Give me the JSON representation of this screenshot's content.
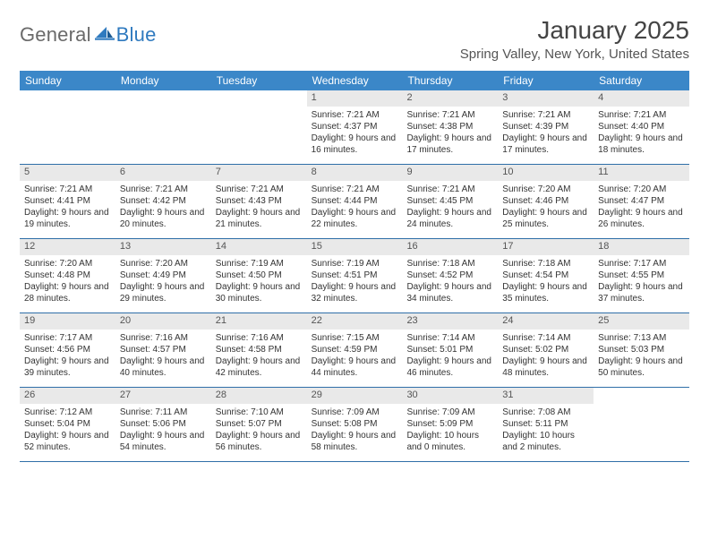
{
  "logo": {
    "text1": "General",
    "text2": "Blue"
  },
  "title": "January 2025",
  "location": "Spring Valley, New York, United States",
  "colors": {
    "header_bg": "#3b87c8",
    "daynum_bg": "#e9e9e9",
    "week_border": "#2f6fa8",
    "logo_gray": "#6a6a6a",
    "logo_blue": "#2f7abf"
  },
  "weekdays": [
    "Sunday",
    "Monday",
    "Tuesday",
    "Wednesday",
    "Thursday",
    "Friday",
    "Saturday"
  ],
  "weeks": [
    [
      {
        "empty": true
      },
      {
        "empty": true
      },
      {
        "empty": true
      },
      {
        "n": "1",
        "sr": "7:21 AM",
        "ss": "4:37 PM",
        "dl": "9 hours and 16 minutes."
      },
      {
        "n": "2",
        "sr": "7:21 AM",
        "ss": "4:38 PM",
        "dl": "9 hours and 17 minutes."
      },
      {
        "n": "3",
        "sr": "7:21 AM",
        "ss": "4:39 PM",
        "dl": "9 hours and 17 minutes."
      },
      {
        "n": "4",
        "sr": "7:21 AM",
        "ss": "4:40 PM",
        "dl": "9 hours and 18 minutes."
      }
    ],
    [
      {
        "n": "5",
        "sr": "7:21 AM",
        "ss": "4:41 PM",
        "dl": "9 hours and 19 minutes."
      },
      {
        "n": "6",
        "sr": "7:21 AM",
        "ss": "4:42 PM",
        "dl": "9 hours and 20 minutes."
      },
      {
        "n": "7",
        "sr": "7:21 AM",
        "ss": "4:43 PM",
        "dl": "9 hours and 21 minutes."
      },
      {
        "n": "8",
        "sr": "7:21 AM",
        "ss": "4:44 PM",
        "dl": "9 hours and 22 minutes."
      },
      {
        "n": "9",
        "sr": "7:21 AM",
        "ss": "4:45 PM",
        "dl": "9 hours and 24 minutes."
      },
      {
        "n": "10",
        "sr": "7:20 AM",
        "ss": "4:46 PM",
        "dl": "9 hours and 25 minutes."
      },
      {
        "n": "11",
        "sr": "7:20 AM",
        "ss": "4:47 PM",
        "dl": "9 hours and 26 minutes."
      }
    ],
    [
      {
        "n": "12",
        "sr": "7:20 AM",
        "ss": "4:48 PM",
        "dl": "9 hours and 28 minutes."
      },
      {
        "n": "13",
        "sr": "7:20 AM",
        "ss": "4:49 PM",
        "dl": "9 hours and 29 minutes."
      },
      {
        "n": "14",
        "sr": "7:19 AM",
        "ss": "4:50 PM",
        "dl": "9 hours and 30 minutes."
      },
      {
        "n": "15",
        "sr": "7:19 AM",
        "ss": "4:51 PM",
        "dl": "9 hours and 32 minutes."
      },
      {
        "n": "16",
        "sr": "7:18 AM",
        "ss": "4:52 PM",
        "dl": "9 hours and 34 minutes."
      },
      {
        "n": "17",
        "sr": "7:18 AM",
        "ss": "4:54 PM",
        "dl": "9 hours and 35 minutes."
      },
      {
        "n": "18",
        "sr": "7:17 AM",
        "ss": "4:55 PM",
        "dl": "9 hours and 37 minutes."
      }
    ],
    [
      {
        "n": "19",
        "sr": "7:17 AM",
        "ss": "4:56 PM",
        "dl": "9 hours and 39 minutes."
      },
      {
        "n": "20",
        "sr": "7:16 AM",
        "ss": "4:57 PM",
        "dl": "9 hours and 40 minutes."
      },
      {
        "n": "21",
        "sr": "7:16 AM",
        "ss": "4:58 PM",
        "dl": "9 hours and 42 minutes."
      },
      {
        "n": "22",
        "sr": "7:15 AM",
        "ss": "4:59 PM",
        "dl": "9 hours and 44 minutes."
      },
      {
        "n": "23",
        "sr": "7:14 AM",
        "ss": "5:01 PM",
        "dl": "9 hours and 46 minutes."
      },
      {
        "n": "24",
        "sr": "7:14 AM",
        "ss": "5:02 PM",
        "dl": "9 hours and 48 minutes."
      },
      {
        "n": "25",
        "sr": "7:13 AM",
        "ss": "5:03 PM",
        "dl": "9 hours and 50 minutes."
      }
    ],
    [
      {
        "n": "26",
        "sr": "7:12 AM",
        "ss": "5:04 PM",
        "dl": "9 hours and 52 minutes."
      },
      {
        "n": "27",
        "sr": "7:11 AM",
        "ss": "5:06 PM",
        "dl": "9 hours and 54 minutes."
      },
      {
        "n": "28",
        "sr": "7:10 AM",
        "ss": "5:07 PM",
        "dl": "9 hours and 56 minutes."
      },
      {
        "n": "29",
        "sr": "7:09 AM",
        "ss": "5:08 PM",
        "dl": "9 hours and 58 minutes."
      },
      {
        "n": "30",
        "sr": "7:09 AM",
        "ss": "5:09 PM",
        "dl": "10 hours and 0 minutes."
      },
      {
        "n": "31",
        "sr": "7:08 AM",
        "ss": "5:11 PM",
        "dl": "10 hours and 2 minutes."
      },
      {
        "empty": true
      }
    ]
  ]
}
